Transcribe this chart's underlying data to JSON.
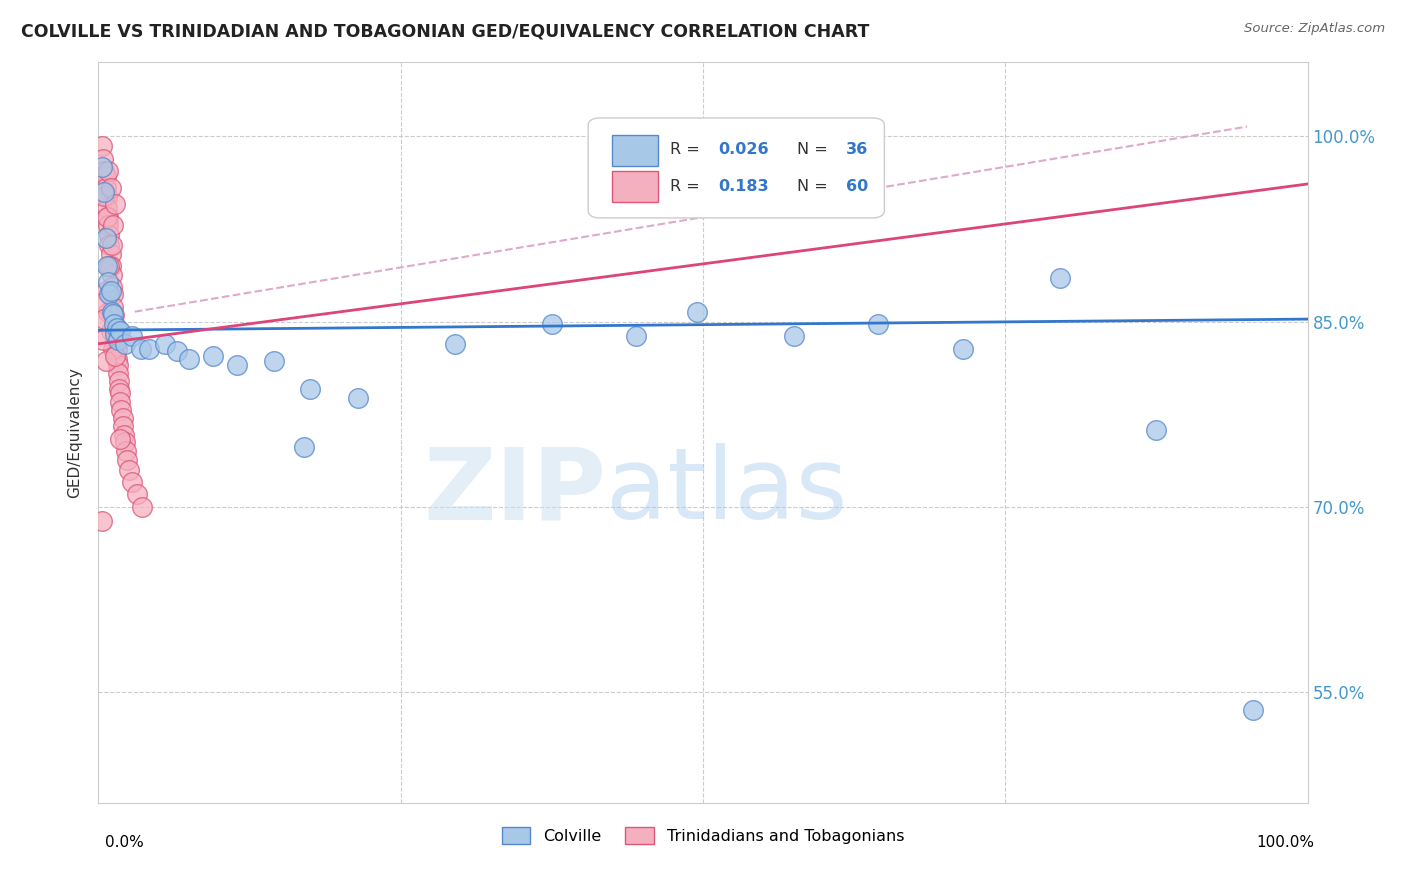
{
  "title": "COLVILLE VS TRINIDADIAN AND TOBAGONIAN GED/EQUIVALENCY CORRELATION CHART",
  "source": "Source: ZipAtlas.com",
  "ylabel": "GED/Equivalency",
  "y_ticks": [
    0.55,
    0.7,
    0.85,
    1.0
  ],
  "y_tick_labels": [
    "55.0%",
    "70.0%",
    "85.0%",
    "100.0%"
  ],
  "x_range": [
    0.0,
    1.0
  ],
  "y_range": [
    0.46,
    1.06
  ],
  "colville_color": "#a8c8e8",
  "trinidadian_color": "#f5b0c0",
  "colville_edge": "#5588cc",
  "trinidadian_edge": "#dd5577",
  "blue_line_color": "#3377cc",
  "pink_line_color": "#dd4477",
  "dashed_line_color": "#ddaacc",
  "background_color": "#ffffff",
  "colville_points": [
    [
      0.003,
      0.975
    ],
    [
      0.005,
      0.955
    ],
    [
      0.006,
      0.918
    ],
    [
      0.007,
      0.895
    ],
    [
      0.008,
      0.882
    ],
    [
      0.009,
      0.872
    ],
    [
      0.01,
      0.875
    ],
    [
      0.011,
      0.858
    ],
    [
      0.012,
      0.856
    ],
    [
      0.013,
      0.848
    ],
    [
      0.014,
      0.84
    ],
    [
      0.015,
      0.845
    ],
    [
      0.016,
      0.835
    ],
    [
      0.018,
      0.842
    ],
    [
      0.022,
      0.832
    ],
    [
      0.028,
      0.838
    ],
    [
      0.035,
      0.828
    ],
    [
      0.042,
      0.828
    ],
    [
      0.055,
      0.832
    ],
    [
      0.065,
      0.826
    ],
    [
      0.075,
      0.82
    ],
    [
      0.095,
      0.822
    ],
    [
      0.115,
      0.815
    ],
    [
      0.145,
      0.818
    ],
    [
      0.175,
      0.795
    ],
    [
      0.215,
      0.788
    ],
    [
      0.17,
      0.748
    ],
    [
      0.295,
      0.832
    ],
    [
      0.375,
      0.848
    ],
    [
      0.445,
      0.838
    ],
    [
      0.495,
      0.858
    ],
    [
      0.575,
      0.838
    ],
    [
      0.645,
      0.848
    ],
    [
      0.715,
      0.828
    ],
    [
      0.795,
      0.885
    ],
    [
      0.875,
      0.762
    ],
    [
      0.955,
      0.535
    ]
  ],
  "trinidadian_points": [
    [
      0.003,
      0.992
    ],
    [
      0.004,
      0.982
    ],
    [
      0.005,
      0.972
    ],
    [
      0.006,
      0.968
    ],
    [
      0.006,
      0.958
    ],
    [
      0.007,
      0.952
    ],
    [
      0.007,
      0.942
    ],
    [
      0.008,
      0.935
    ],
    [
      0.008,
      0.928
    ],
    [
      0.009,
      0.92
    ],
    [
      0.009,
      0.912
    ],
    [
      0.01,
      0.905
    ],
    [
      0.01,
      0.895
    ],
    [
      0.011,
      0.888
    ],
    [
      0.011,
      0.878
    ],
    [
      0.012,
      0.872
    ],
    [
      0.012,
      0.862
    ],
    [
      0.013,
      0.855
    ],
    [
      0.013,
      0.848
    ],
    [
      0.014,
      0.842
    ],
    [
      0.014,
      0.835
    ],
    [
      0.015,
      0.828
    ],
    [
      0.015,
      0.82
    ],
    [
      0.016,
      0.815
    ],
    [
      0.016,
      0.808
    ],
    [
      0.017,
      0.802
    ],
    [
      0.017,
      0.795
    ],
    [
      0.018,
      0.792
    ],
    [
      0.018,
      0.785
    ],
    [
      0.019,
      0.778
    ],
    [
      0.02,
      0.772
    ],
    [
      0.02,
      0.765
    ],
    [
      0.021,
      0.758
    ],
    [
      0.022,
      0.752
    ],
    [
      0.023,
      0.745
    ],
    [
      0.024,
      0.738
    ],
    [
      0.025,
      0.73
    ],
    [
      0.028,
      0.72
    ],
    [
      0.032,
      0.71
    ],
    [
      0.036,
      0.7
    ],
    [
      0.005,
      0.952
    ],
    [
      0.007,
      0.935
    ],
    [
      0.009,
      0.895
    ],
    [
      0.011,
      0.912
    ],
    [
      0.008,
      0.972
    ],
    [
      0.01,
      0.958
    ],
    [
      0.012,
      0.928
    ],
    [
      0.014,
      0.945
    ],
    [
      0.006,
      0.875
    ],
    [
      0.008,
      0.858
    ],
    [
      0.01,
      0.842
    ],
    [
      0.012,
      0.828
    ],
    [
      0.004,
      0.835
    ],
    [
      0.006,
      0.818
    ],
    [
      0.003,
      0.865
    ],
    [
      0.005,
      0.852
    ],
    [
      0.014,
      0.822
    ],
    [
      0.016,
      0.838
    ],
    [
      0.018,
      0.755
    ],
    [
      0.003,
      0.688
    ]
  ]
}
